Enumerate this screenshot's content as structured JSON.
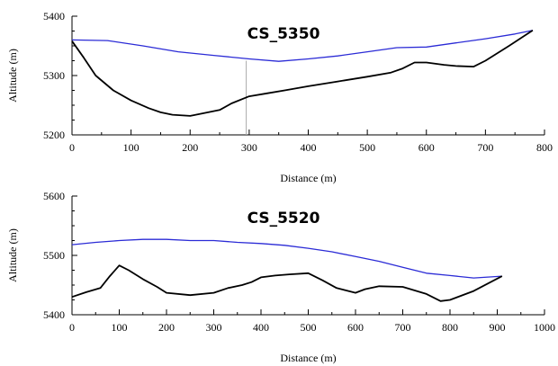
{
  "chart_data": [
    {
      "type": "line",
      "title": "CS_5350",
      "xlabel": "Distance (m)",
      "ylabel": "Altitude (m)",
      "xlim": [
        0,
        800
      ],
      "ylim": [
        5200,
        5400
      ],
      "xticks": [
        0,
        100,
        200,
        300,
        400,
        500,
        600,
        700,
        800
      ],
      "yticks": [
        5200,
        5300,
        5400
      ],
      "marker_x": 295,
      "series": [
        {
          "color": "#2b2bd6",
          "x": [
            0,
            60,
            120,
            180,
            240,
            300,
            350,
            400,
            450,
            500,
            550,
            600,
            650,
            700,
            750,
            780
          ],
          "y": [
            5360,
            5359,
            5350,
            5340,
            5334,
            5328,
            5324,
            5328,
            5333,
            5340,
            5347,
            5348,
            5355,
            5362,
            5370,
            5376
          ]
        },
        {
          "color": "#000000",
          "x": [
            0,
            20,
            40,
            70,
            100,
            130,
            150,
            170,
            200,
            220,
            250,
            270,
            300,
            330,
            360,
            400,
            450,
            500,
            540,
            560,
            580,
            600,
            630,
            650,
            680,
            700,
            740,
            780
          ],
          "y": [
            5358,
            5330,
            5300,
            5275,
            5258,
            5245,
            5238,
            5234,
            5232,
            5236,
            5242,
            5253,
            5265,
            5270,
            5275,
            5282,
            5290,
            5298,
            5305,
            5312,
            5322,
            5322,
            5318,
            5316,
            5315,
            5325,
            5350,
            5376
          ]
        }
      ]
    },
    {
      "type": "line",
      "title": "CS_5520",
      "xlabel": "Distance (m)",
      "ylabel": "Altitude (m)",
      "xlim": [
        0,
        1000
      ],
      "ylim": [
        5400,
        5600
      ],
      "xticks": [
        0,
        100,
        200,
        300,
        400,
        500,
        600,
        700,
        800,
        900,
        1000
      ],
      "yticks": [
        5400,
        5500,
        5600
      ],
      "series": [
        {
          "color": "#2b2bd6",
          "x": [
            0,
            50,
            100,
            150,
            200,
            250,
            300,
            350,
            400,
            450,
            500,
            550,
            600,
            650,
            700,
            750,
            800,
            850,
            910
          ],
          "y": [
            5518,
            5522,
            5525,
            5527,
            5527,
            5525,
            5525,
            5522,
            5520,
            5517,
            5512,
            5506,
            5498,
            5490,
            5480,
            5470,
            5466,
            5462,
            5465
          ]
        },
        {
          "color": "#000000",
          "x": [
            0,
            30,
            60,
            80,
            100,
            120,
            150,
            180,
            200,
            250,
            300,
            330,
            360,
            380,
            400,
            430,
            460,
            500,
            530,
            560,
            600,
            620,
            650,
            700,
            750,
            780,
            800,
            850,
            910
          ],
          "y": [
            5430,
            5438,
            5445,
            5465,
            5483,
            5475,
            5460,
            5447,
            5437,
            5433,
            5437,
            5445,
            5450,
            5455,
            5463,
            5466,
            5468,
            5470,
            5458,
            5445,
            5437,
            5443,
            5448,
            5447,
            5435,
            5423,
            5425,
            5440,
            5465
          ]
        }
      ]
    }
  ]
}
